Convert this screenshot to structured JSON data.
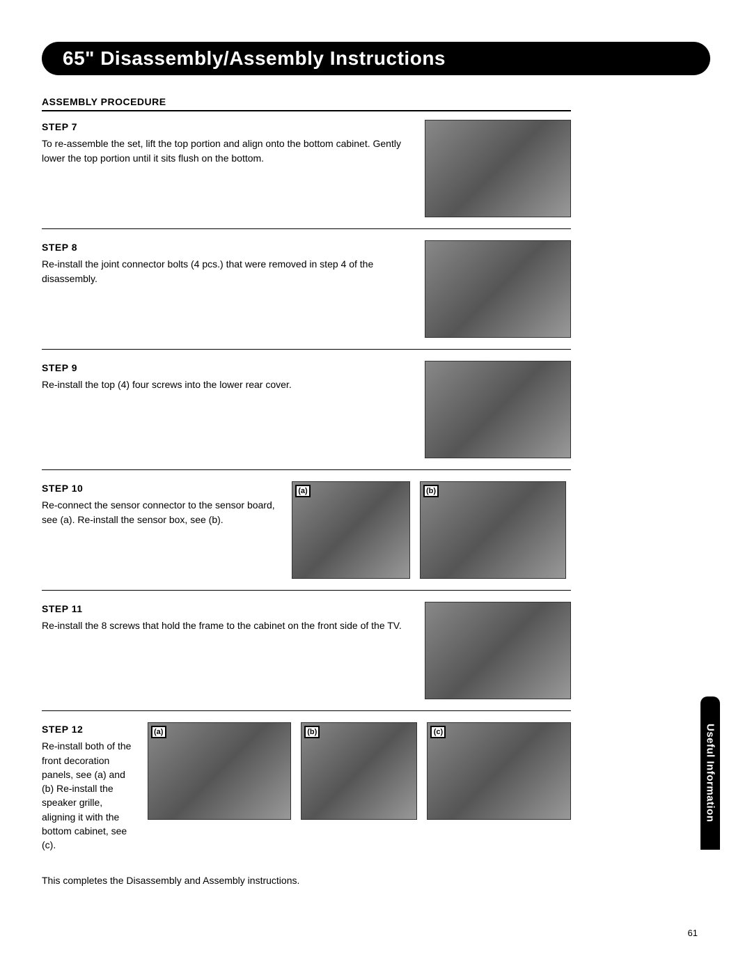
{
  "header": {
    "title": "65\" Disassembly/Assembly Instructions"
  },
  "section_header": "ASSEMBLY PROCEDURE",
  "steps": {
    "s7": {
      "label": "STEP 7",
      "text": "To re-assemble the set, lift the top portion and align onto the bottom cabinet. Gently lower the top portion until it sits flush on the bottom."
    },
    "s8": {
      "label": "STEP 8",
      "text": "Re-install the joint connector bolts (4 pcs.) that were removed in step 4 of the disassembly."
    },
    "s9": {
      "label": "STEP 9",
      "text": "Re-install the top (4) four screws into the lower rear cover."
    },
    "s10": {
      "label": "STEP 10",
      "text": "Re-connect the sensor connector to the sensor board, see (a). Re-install the sensor box, see (b).",
      "img_a": "(a)",
      "img_b": "(b)"
    },
    "s11": {
      "label": "STEP 11",
      "text": "Re-install the 8 screws that hold the frame to the cabinet on the front side of the TV."
    },
    "s12": {
      "label": "STEP 12",
      "text": "Re-install both of the front decoration panels, see (a) and (b) Re-install the speaker grille, aligning it with the bottom cabinet, see (c).",
      "img_a": "(a)",
      "img_b": "(b)",
      "img_c": "(c)"
    }
  },
  "closing_text": "This completes the Disassembly and Assembly instructions.",
  "side_tab": "Useful Information",
  "page_number": "61",
  "colors": {
    "black": "#000000",
    "white": "#ffffff",
    "placeholder_grey": "#808080"
  }
}
